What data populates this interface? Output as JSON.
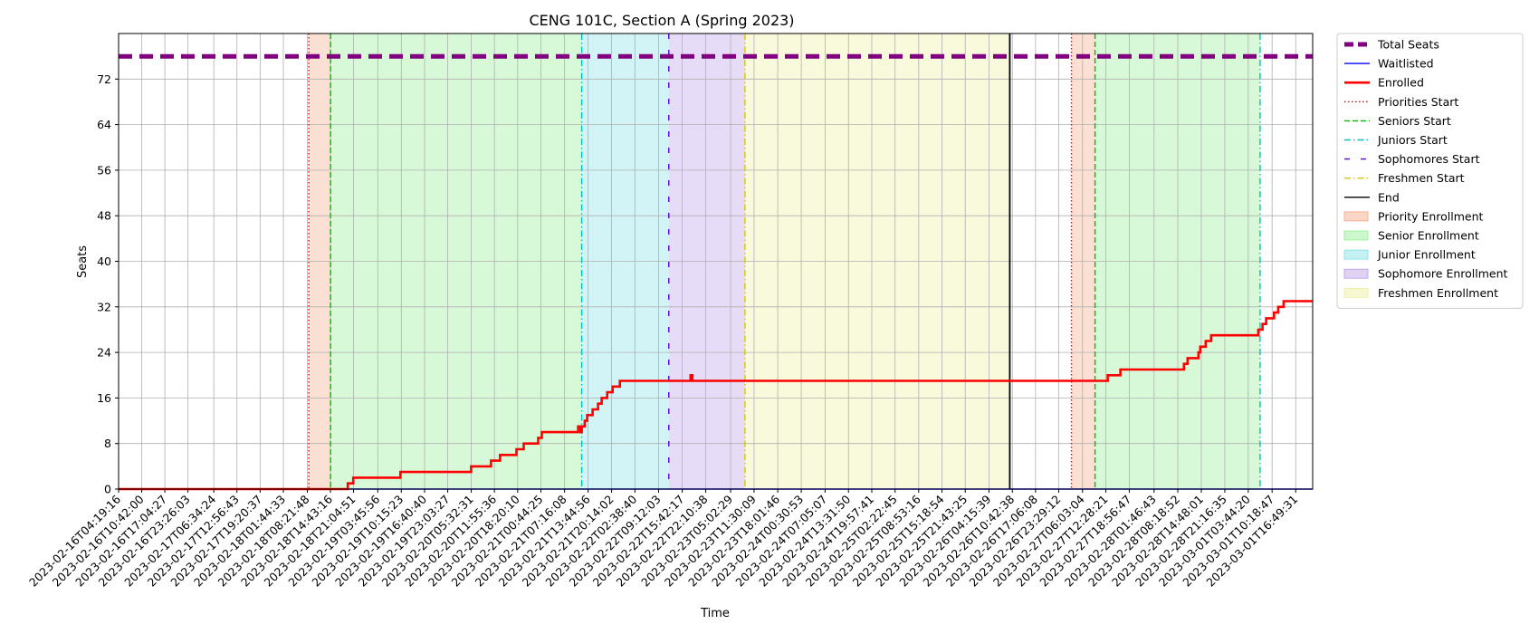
{
  "chart_data": {
    "type": "line",
    "title": "CENG 101C, Section A (Spring 2023)",
    "xlabel": "Time",
    "ylabel": "Seats",
    "ylim": [
      0,
      80
    ],
    "yticks": [
      0,
      8,
      16,
      24,
      32,
      40,
      48,
      56,
      64,
      72
    ],
    "grid": true,
    "legend_placement": "outside right, top",
    "x_ticks": [
      "2023-02-16T04:19:16",
      "2023-02-16T10:42:00",
      "2023-02-16T17:04:27",
      "2023-02-16T23:26:03",
      "2023-02-17T06:34:24",
      "2023-02-17T12:56:43",
      "2023-02-17T19:20:37",
      "2023-02-18T01:44:33",
      "2023-02-18T08:21:48",
      "2023-02-18T14:43:16",
      "2023-02-18T21:04:51",
      "2023-02-19T03:45:56",
      "2023-02-19T10:15:23",
      "2023-02-19T16:40:40",
      "2023-02-19T23:03:27",
      "2023-02-20T05:32:31",
      "2023-02-20T11:55:36",
      "2023-02-20T18:20:10",
      "2023-02-21T00:44:25",
      "2023-02-21T07:16:08",
      "2023-02-21T13:44:56",
      "2023-02-21T20:14:02",
      "2023-02-22T02:38:40",
      "2023-02-22T09:12:03",
      "2023-02-22T15:42:17",
      "2023-02-22T22:10:38",
      "2023-02-23T05:02:29",
      "2023-02-23T11:30:09",
      "2023-02-23T18:01:46",
      "2023-02-24T00:30:53",
      "2023-02-24T07:05:07",
      "2023-02-24T13:31:50",
      "2023-02-24T19:57:41",
      "2023-02-25T02:22:45",
      "2023-02-25T08:53:16",
      "2023-02-25T15:18:54",
      "2023-02-25T21:43:25",
      "2023-02-26T04:15:39",
      "2023-02-26T10:42:38",
      "2023-02-26T17:06:08",
      "2023-02-26T23:29:12",
      "2023-02-27T06:03:04",
      "2023-02-27T12:28:21",
      "2023-02-27T18:56:47",
      "2023-02-28T01:46:43",
      "2023-02-28T08:18:52",
      "2023-02-28T14:48:01",
      "2023-02-28T21:16:35",
      "2023-03-01T03:44:20",
      "2023-03-01T10:18:47",
      "2023-03-01T16:49:31"
    ],
    "x_range": [
      "2023-02-16T04:19:16",
      "2023-03-01T21:30:00"
    ],
    "series": [
      {
        "name": "Total Seats",
        "color": "#800080",
        "style": "dashed",
        "points": [
          [
            "2023-02-16T04:19:16",
            76
          ],
          [
            "2023-03-01T21:30:00",
            76
          ]
        ]
      },
      {
        "name": "Waitlisted",
        "color": "#0000ff",
        "style": "solid",
        "points": [
          [
            "2023-02-16T04:19:16",
            0
          ],
          [
            "2023-03-01T21:30:00",
            0
          ]
        ]
      },
      {
        "name": "Enrolled",
        "color": "#ff0000",
        "style": "solid",
        "points": [
          [
            "2023-02-16T04:19:16",
            0
          ],
          [
            "2023-02-18T16:30:00",
            0
          ],
          [
            "2023-02-18T19:30:00",
            0
          ],
          [
            "2023-02-18T19:30:00",
            1
          ],
          [
            "2023-02-18T21:00:00",
            1
          ],
          [
            "2023-02-18T21:00:00",
            2
          ],
          [
            "2023-02-19T10:00:00",
            2
          ],
          [
            "2023-02-19T10:00:00",
            3
          ],
          [
            "2023-02-20T05:30:00",
            3
          ],
          [
            "2023-02-20T05:30:00",
            4
          ],
          [
            "2023-02-20T11:00:00",
            4
          ],
          [
            "2023-02-20T11:00:00",
            5
          ],
          [
            "2023-02-20T13:30:00",
            5
          ],
          [
            "2023-02-20T13:30:00",
            6
          ],
          [
            "2023-02-20T18:00:00",
            6
          ],
          [
            "2023-02-20T18:00:00",
            7
          ],
          [
            "2023-02-20T20:00:00",
            7
          ],
          [
            "2023-02-20T20:00:00",
            8
          ],
          [
            "2023-02-21T00:00:00",
            8
          ],
          [
            "2023-02-21T00:00:00",
            9
          ],
          [
            "2023-02-21T01:00:00",
            9
          ],
          [
            "2023-02-21T01:00:00",
            10
          ],
          [
            "2023-02-21T11:00:00",
            10
          ],
          [
            "2023-02-21T11:00:00",
            11
          ],
          [
            "2023-02-21T11:40:00",
            11
          ],
          [
            "2023-02-21T11:40:00",
            10
          ],
          [
            "2023-02-21T12:00:00",
            10
          ],
          [
            "2023-02-21T12:00:00",
            11
          ],
          [
            "2023-02-21T12:50:00",
            11
          ],
          [
            "2023-02-21T12:50:00",
            12
          ],
          [
            "2023-02-21T13:30:00",
            12
          ],
          [
            "2023-02-21T13:30:00",
            13
          ],
          [
            "2023-02-21T15:00:00",
            13
          ],
          [
            "2023-02-21T15:00:00",
            14
          ],
          [
            "2023-02-21T16:30:00",
            14
          ],
          [
            "2023-02-21T16:30:00",
            15
          ],
          [
            "2023-02-21T17:30:00",
            15
          ],
          [
            "2023-02-21T17:30:00",
            16
          ],
          [
            "2023-02-21T19:00:00",
            16
          ],
          [
            "2023-02-21T19:00:00",
            17
          ],
          [
            "2023-02-21T20:30:00",
            17
          ],
          [
            "2023-02-21T20:30:00",
            18
          ],
          [
            "2023-02-21T22:30:00",
            18
          ],
          [
            "2023-02-21T22:30:00",
            19
          ],
          [
            "2023-02-22T18:00:00",
            19
          ],
          [
            "2023-02-22T18:00:00",
            20
          ],
          [
            "2023-02-22T18:30:00",
            20
          ],
          [
            "2023-02-22T18:30:00",
            19
          ],
          [
            "2023-02-27T13:00:00",
            19
          ],
          [
            "2023-02-27T13:00:00",
            20
          ],
          [
            "2023-02-27T16:30:00",
            20
          ],
          [
            "2023-02-27T16:30:00",
            21
          ],
          [
            "2023-02-28T10:00:00",
            21
          ],
          [
            "2023-02-28T10:00:00",
            22
          ],
          [
            "2023-02-28T11:00:00",
            22
          ],
          [
            "2023-02-28T11:00:00",
            23
          ],
          [
            "2023-02-28T14:00:00",
            23
          ],
          [
            "2023-02-28T14:00:00",
            24
          ],
          [
            "2023-02-28T14:30:00",
            24
          ],
          [
            "2023-02-28T14:30:00",
            25
          ],
          [
            "2023-02-28T16:00:00",
            25
          ],
          [
            "2023-02-28T16:00:00",
            26
          ],
          [
            "2023-02-28T17:30:00",
            26
          ],
          [
            "2023-02-28T17:30:00",
            27
          ],
          [
            "2023-03-01T06:30:00",
            27
          ],
          [
            "2023-03-01T06:30:00",
            28
          ],
          [
            "2023-03-01T07:40:00",
            28
          ],
          [
            "2023-03-01T07:40:00",
            29
          ],
          [
            "2023-03-01T08:40:00",
            29
          ],
          [
            "2023-03-01T08:40:00",
            30
          ],
          [
            "2023-03-01T10:50:00",
            30
          ],
          [
            "2023-03-01T10:50:00",
            31
          ],
          [
            "2023-03-01T12:00:00",
            31
          ],
          [
            "2023-03-01T12:00:00",
            32
          ],
          [
            "2023-03-01T13:30:00",
            32
          ],
          [
            "2023-03-01T13:30:00",
            33
          ],
          [
            "2023-03-01T21:30:00",
            33
          ]
        ]
      }
    ],
    "vlines": [
      {
        "name": "Priorities Start",
        "color": "#ff0000",
        "style": "dotted",
        "x": [
          "2023-02-18T08:45:00",
          "2023-02-27T03:00:00"
        ]
      },
      {
        "name": "Seniors Start",
        "color": "#00bb00",
        "style": "dashed",
        "x": [
          "2023-02-18T14:45:00",
          "2023-02-27T09:30:00"
        ]
      },
      {
        "name": "Juniors Start",
        "color": "#00bfbf",
        "style": "dashdot",
        "x": [
          "2023-02-21T12:00:00",
          "2023-03-01T07:00:00"
        ]
      },
      {
        "name": "Sophomores Start",
        "color": "#5500dd",
        "style": "loosedash",
        "x": [
          "2023-02-22T12:00:00"
        ]
      },
      {
        "name": "Freshmen Start",
        "color": "#d6c600",
        "style": "dashdot",
        "x": [
          "2023-02-23T09:00:00"
        ]
      },
      {
        "name": "End",
        "color": "#000000",
        "style": "solid",
        "x": [
          "2023-02-26T10:00:00"
        ]
      }
    ],
    "spans": [
      {
        "name": "Priority Enrollment",
        "color": "#f4a582",
        "ranges": [
          [
            "2023-02-18T08:45:00",
            "2023-02-18T14:45:00"
          ],
          [
            "2023-02-27T03:00:00",
            "2023-02-27T09:30:00"
          ]
        ]
      },
      {
        "name": "Senior Enrollment",
        "color": "#90ee90",
        "ranges": [
          [
            "2023-02-18T14:45:00",
            "2023-02-21T12:00:00"
          ],
          [
            "2023-02-27T09:30:00",
            "2023-03-01T07:00:00"
          ]
        ]
      },
      {
        "name": "Junior Enrollment",
        "color": "#7fdfe6",
        "ranges": [
          [
            "2023-02-21T12:00:00",
            "2023-02-22T12:00:00"
          ]
        ]
      },
      {
        "name": "Sophomore Enrollment",
        "color": "#b99ce8",
        "ranges": [
          [
            "2023-02-22T12:00:00",
            "2023-02-23T09:00:00"
          ]
        ]
      },
      {
        "name": "Freshmen Enrollment",
        "color": "#eeee9a",
        "ranges": [
          [
            "2023-02-23T09:00:00",
            "2023-02-26T10:00:00"
          ]
        ]
      }
    ],
    "legend": [
      {
        "label": "Total Seats",
        "kind": "line",
        "color": "#800080",
        "style": "dashed-thick"
      },
      {
        "label": "Waitlisted",
        "kind": "line",
        "color": "#0000ff",
        "style": "solid"
      },
      {
        "label": "Enrolled",
        "kind": "line",
        "color": "#ff0000",
        "style": "solid-thick"
      },
      {
        "label": "Priorities Start",
        "kind": "line",
        "color": "#ff0000",
        "style": "dotted"
      },
      {
        "label": "Seniors Start",
        "kind": "line",
        "color": "#00bb00",
        "style": "dashed"
      },
      {
        "label": "Juniors Start",
        "kind": "line",
        "color": "#00bfbf",
        "style": "dashdot"
      },
      {
        "label": "Sophomores Start",
        "kind": "line",
        "color": "#5500dd",
        "style": "loosedash"
      },
      {
        "label": "Freshmen Start",
        "kind": "line",
        "color": "#d6c600",
        "style": "dashdot"
      },
      {
        "label": "End",
        "kind": "line",
        "color": "#000000",
        "style": "solid"
      },
      {
        "label": "Priority Enrollment",
        "kind": "patch",
        "color": "#f4a582"
      },
      {
        "label": "Senior Enrollment",
        "kind": "patch",
        "color": "#90ee90"
      },
      {
        "label": "Junior Enrollment",
        "kind": "patch",
        "color": "#7fdfe6"
      },
      {
        "label": "Sophomore Enrollment",
        "kind": "patch",
        "color": "#b99ce8"
      },
      {
        "label": "Freshmen Enrollment",
        "kind": "patch",
        "color": "#eeee9a"
      }
    ]
  }
}
